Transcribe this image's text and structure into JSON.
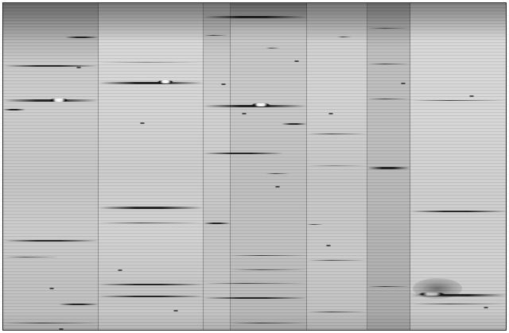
{
  "image": {
    "kind": "grayscale striped scan",
    "dominant_colors": [
      "#bdbdbd",
      "#d6d6d6",
      "#8f8f8f",
      "#1f1f1f",
      "#ffffff"
    ],
    "panel_count": 7
  }
}
